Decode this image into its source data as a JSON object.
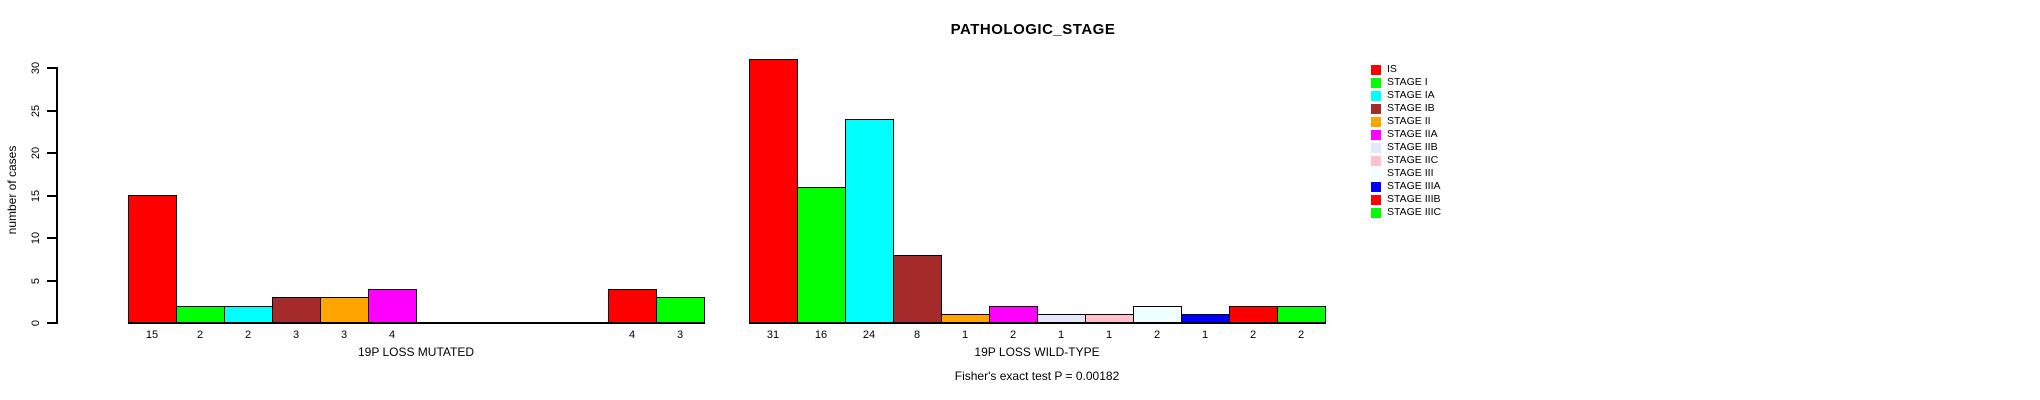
{
  "chart_data": {
    "type": "bar",
    "title": "PATHOLOGIC_STAGE",
    "ylabel": "number of cases",
    "ylim": [
      0,
      30
    ],
    "yticks": [
      0,
      5,
      10,
      15,
      20,
      25,
      30
    ],
    "grid": false,
    "legend_position": "top-right",
    "categories": [
      "IS",
      "STAGE I",
      "STAGE IA",
      "STAGE IB",
      "STAGE II",
      "STAGE IIA",
      "STAGE IIB",
      "STAGE IIC",
      "STAGE III",
      "STAGE IIIA",
      "STAGE IIIB",
      "STAGE IIIC"
    ],
    "colors": [
      "#FF0000",
      "#00FF00",
      "#00FFFF",
      "#A52A2A",
      "#FFA500",
      "#FF00FF",
      "#E6E6FA",
      "#FFC0CB",
      "#F0FFFF",
      "#0000FF",
      "#FF0000",
      "#00FF00"
    ],
    "groups": [
      {
        "label": "19P LOSS MUTATED",
        "values": [
          15,
          2,
          2,
          3,
          3,
          4,
          0,
          0,
          0,
          0,
          4,
          3
        ]
      },
      {
        "label": "19P LOSS WILD-TYPE",
        "values": [
          31,
          16,
          24,
          8,
          1,
          2,
          1,
          1,
          2,
          1,
          2,
          2
        ]
      }
    ],
    "bar_value_labels_shown": true,
    "annotation": "Fisher's exact test P = 0.00182"
  }
}
